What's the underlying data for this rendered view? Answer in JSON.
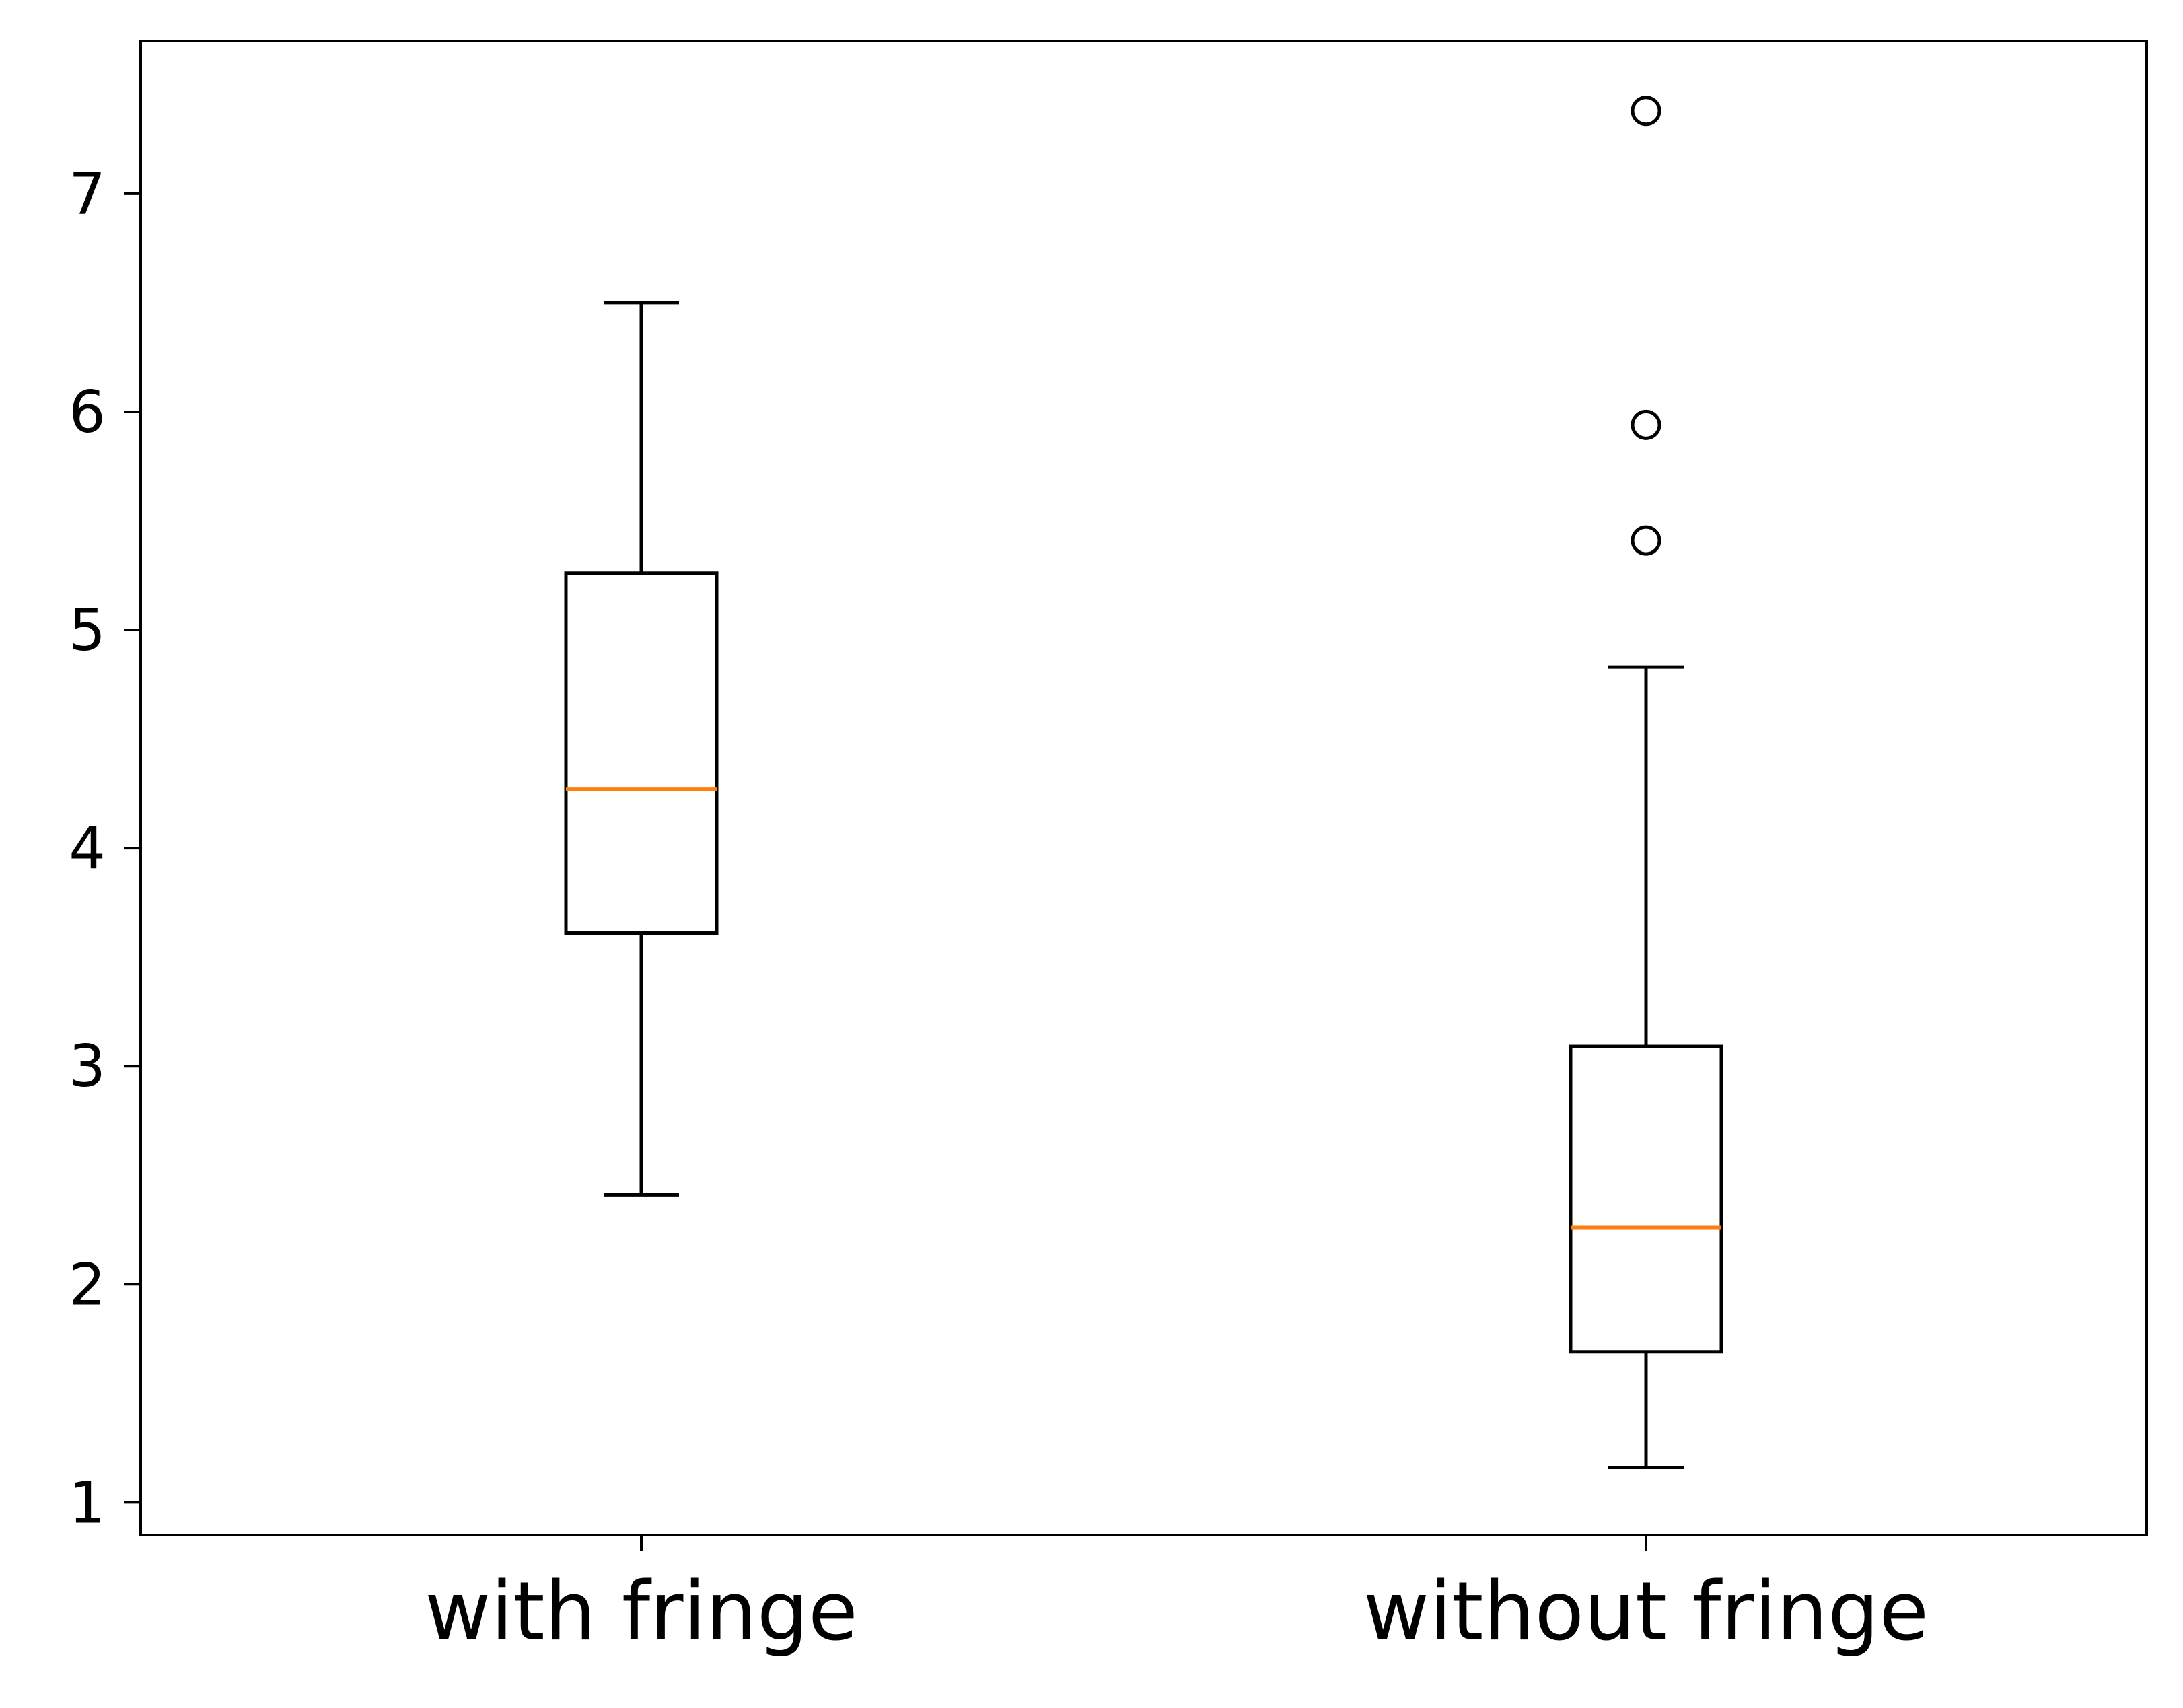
{
  "chart_data": {
    "type": "boxplot",
    "title": "",
    "xlabel": "",
    "ylabel": "",
    "categories": [
      "with fringe",
      "without fringe"
    ],
    "ylim": [
      0.85,
      7.7
    ],
    "yticks": [
      1,
      2,
      3,
      4,
      5,
      6,
      7
    ],
    "boxes": [
      {
        "category": "with fringe",
        "whisker_low": 2.41,
        "q1": 3.61,
        "median": 4.27,
        "q3": 5.26,
        "whisker_high": 6.5,
        "outliers": []
      },
      {
        "category": "without fringe",
        "whisker_low": 1.16,
        "q1": 1.69,
        "median": 2.26,
        "q3": 3.09,
        "whisker_high": 4.83,
        "outliers": [
          5.41,
          5.94,
          7.38
        ]
      }
    ],
    "grid": false,
    "legend": "none",
    "colors": {
      "box": "#000000",
      "median": "#ff7f0e",
      "outlier": "#000000"
    }
  }
}
